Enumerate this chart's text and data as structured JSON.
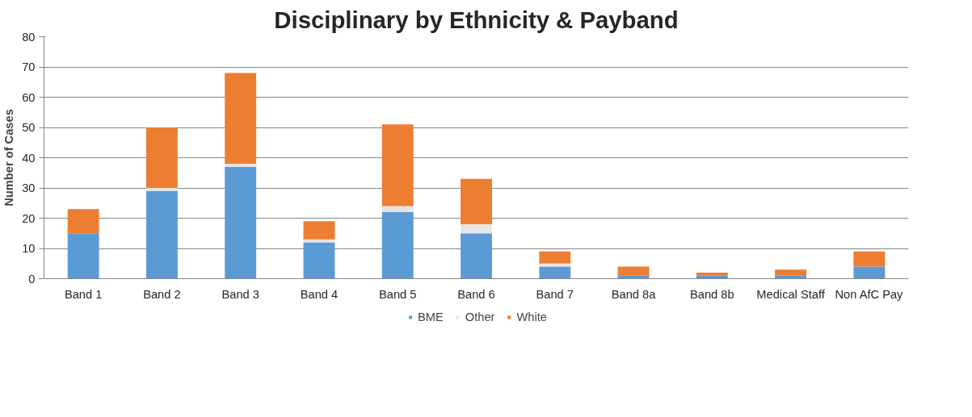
{
  "chart_data": {
    "type": "bar",
    "title": "Disciplinary by Ethnicity & Payband",
    "ylabel": "Number of Cases",
    "categories": [
      "Band 1",
      "Band 2",
      "Band 3",
      "Band 4",
      "Band 5",
      "Band 6",
      "Band 7",
      "Band 8a",
      "Band 8b",
      "Medical Staff",
      "Non AfC Pay"
    ],
    "stacked": true,
    "series": [
      {
        "name": "BME",
        "color": "#5b9bd5",
        "values": [
          15,
          29,
          37,
          12,
          22,
          15,
          4,
          1,
          1,
          1,
          4
        ]
      },
      {
        "name": "Other",
        "color": "#e7e6e6",
        "values": [
          0,
          1,
          1,
          1,
          2,
          3,
          1,
          0,
          0,
          0,
          0
        ]
      },
      {
        "name": "White",
        "color": "#ed7d31",
        "values": [
          8,
          20,
          30,
          6,
          27,
          15,
          4,
          3,
          1,
          2,
          5
        ]
      }
    ],
    "ylim": [
      0,
      80
    ],
    "yticks": [
      0,
      10,
      20,
      30,
      40,
      50,
      60,
      70,
      80
    ],
    "grid": "y",
    "legend": "bottom"
  }
}
